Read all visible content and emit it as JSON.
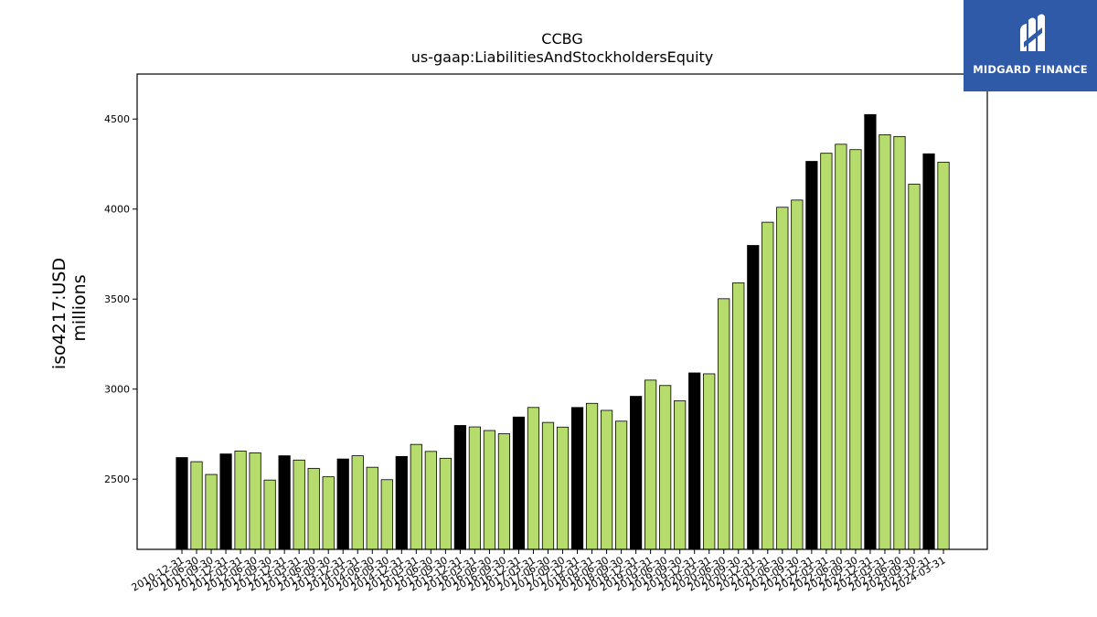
{
  "logo": {
    "text": "MIDGARD FINANCE"
  },
  "chart_data": {
    "type": "bar",
    "title": "CCBG",
    "subtitle": "us-gaap:LiabilitiesAndStockholdersEquity",
    "ylabel": "iso4217:USD",
    "ylabel2": "millions",
    "xlabel": "",
    "ylim": [
      2110,
      4750
    ],
    "yticks": [
      2500,
      3000,
      3500,
      4000,
      4500
    ],
    "colors": {
      "annual": "#000000",
      "quarterly": "#b5dc6c",
      "edge": "#000000"
    },
    "categories": [
      "2010-12-31",
      "2011-06-30",
      "2011-09-30",
      "2011-12-31",
      "2012-03-31",
      "2012-06-30",
      "2012-09-30",
      "2012-12-31",
      "2013-03-31",
      "2013-06-30",
      "2013-09-30",
      "2013-12-31",
      "2014-03-31",
      "2014-06-30",
      "2014-09-30",
      "2014-12-31",
      "2015-03-31",
      "2015-06-30",
      "2015-09-30",
      "2015-12-31",
      "2016-03-31",
      "2016-06-30",
      "2016-09-30",
      "2016-12-31",
      "2017-03-31",
      "2017-06-30",
      "2017-09-30",
      "2017-12-31",
      "2018-03-31",
      "2018-06-30",
      "2018-09-30",
      "2018-12-31",
      "2019-03-31",
      "2019-06-30",
      "2019-09-30",
      "2019-12-31",
      "2020-03-31",
      "2020-06-30",
      "2020-09-30",
      "2020-12-31",
      "2021-03-31",
      "2021-06-30",
      "2021-09-30",
      "2021-12-31",
      "2022-03-31",
      "2022-06-30",
      "2022-09-30",
      "2022-12-31",
      "2023-03-31",
      "2023-06-30",
      "2023-09-30",
      "2023-12-31",
      "2024-03-31"
    ],
    "values": [
      2620,
      2597,
      2526,
      2640,
      2656,
      2646,
      2495,
      2630,
      2606,
      2560,
      2513,
      2612,
      2630,
      2566,
      2497,
      2626,
      2693,
      2654,
      2616,
      2798,
      2790,
      2770,
      2752,
      2845,
      2898,
      2815,
      2789,
      2898,
      2921,
      2882,
      2822,
      2960,
      3050,
      3020,
      2935,
      3090,
      3085,
      3502,
      3590,
      3798,
      3927,
      4010,
      4050,
      4265,
      4310,
      4360,
      4330,
      4525,
      4413,
      4403,
      4138,
      4307,
      4260
    ],
    "is_annual": [
      true,
      false,
      false,
      true,
      false,
      false,
      false,
      true,
      false,
      false,
      false,
      true,
      false,
      false,
      false,
      true,
      false,
      false,
      false,
      true,
      false,
      false,
      false,
      true,
      false,
      false,
      false,
      true,
      false,
      false,
      false,
      true,
      false,
      false,
      false,
      true,
      false,
      false,
      false,
      true,
      false,
      false,
      false,
      true,
      false,
      false,
      false,
      true,
      false,
      false,
      false,
      true,
      false
    ]
  }
}
